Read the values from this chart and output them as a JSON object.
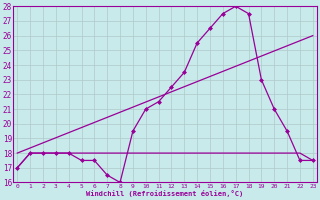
{
  "xlabel": "Windchill (Refroidissement éolien,°C)",
  "bg_color": "#c8eaea",
  "line_color": "#990099",
  "grid_color": "#b0c8c8",
  "x_min": 0,
  "x_max": 23,
  "y_min": 16,
  "y_max": 28,
  "series": [
    {
      "x": [
        0,
        1,
        2,
        3,
        4,
        5,
        6,
        7,
        8,
        9,
        10,
        11,
        12,
        13,
        14,
        15,
        16,
        17,
        18,
        19,
        20,
        21,
        22,
        23
      ],
      "y": [
        17.0,
        18.0,
        18.0,
        18.0,
        18.0,
        17.5,
        17.5,
        16.5,
        16.0,
        19.5,
        21.0,
        21.5,
        22.5,
        23.5,
        25.5,
        26.5,
        27.5,
        28.0,
        27.5,
        23.0,
        21.0,
        19.5,
        17.5,
        17.5
      ],
      "marker": "D",
      "markersize": 2.0,
      "linewidth": 0.9
    },
    {
      "x": [
        0,
        23
      ],
      "y": [
        18.0,
        26.0
      ],
      "marker": null,
      "markersize": 0,
      "linewidth": 0.9
    },
    {
      "x": [
        0,
        1,
        9,
        14,
        22,
        23
      ],
      "y": [
        17.0,
        18.0,
        18.0,
        18.0,
        18.0,
        17.5
      ],
      "marker": null,
      "markersize": 0,
      "linewidth": 0.9
    }
  ]
}
